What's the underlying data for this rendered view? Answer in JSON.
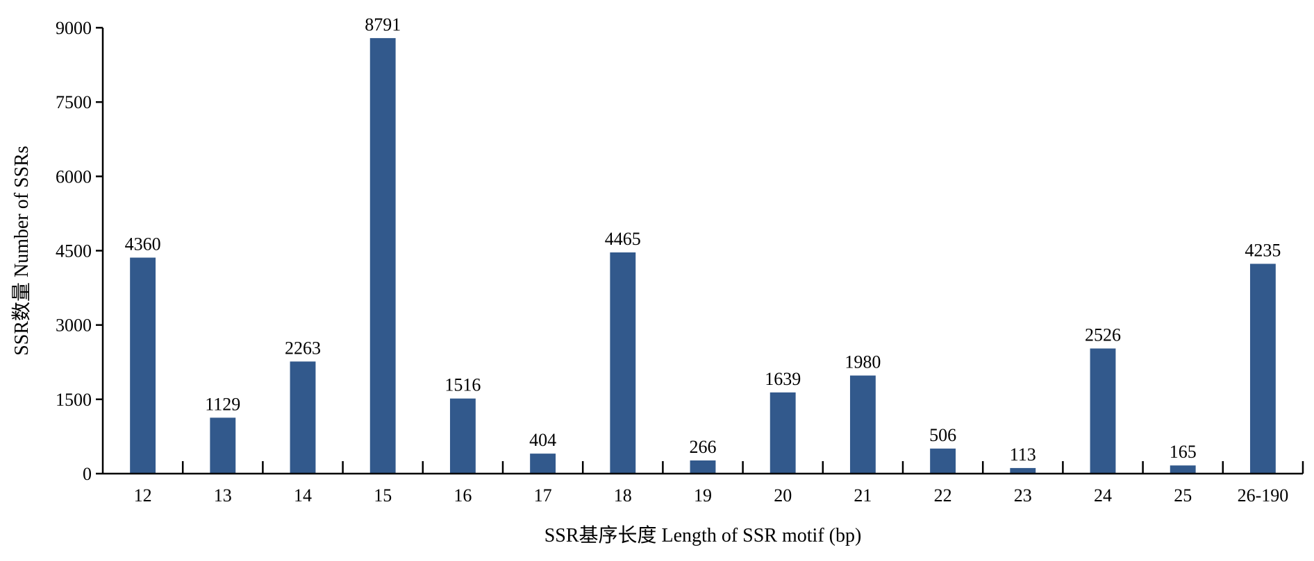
{
  "chart_data": {
    "type": "bar",
    "categories": [
      "12",
      "13",
      "14",
      "15",
      "16",
      "17",
      "18",
      "19",
      "20",
      "21",
      "22",
      "23",
      "24",
      "25",
      "26-190"
    ],
    "values": [
      4360,
      1129,
      2263,
      8791,
      1516,
      404,
      4465,
      266,
      1639,
      1980,
      506,
      113,
      2526,
      165,
      4235
    ],
    "data_labels": [
      "4360",
      "1129",
      "2263",
      "8791",
      "1516",
      "404",
      "4465",
      "266",
      "1639",
      "1980",
      "506",
      "113",
      "2526",
      "165",
      "4235"
    ],
    "title": "",
    "xlabel": "SSR基序长度 Length of SSR motif (bp)",
    "ylabel": "SSR数量 Number of SSRs",
    "ylim": [
      0,
      9000
    ],
    "yticks": [
      0,
      1500,
      3000,
      4500,
      6000,
      7500,
      9000
    ],
    "ytick_labels": [
      "0",
      "1500",
      "3000",
      "4500",
      "6000",
      "7500",
      "9000"
    ],
    "grid": false,
    "legend": "none",
    "colors": {
      "bar": "#32598c",
      "axis": "#000000"
    }
  }
}
